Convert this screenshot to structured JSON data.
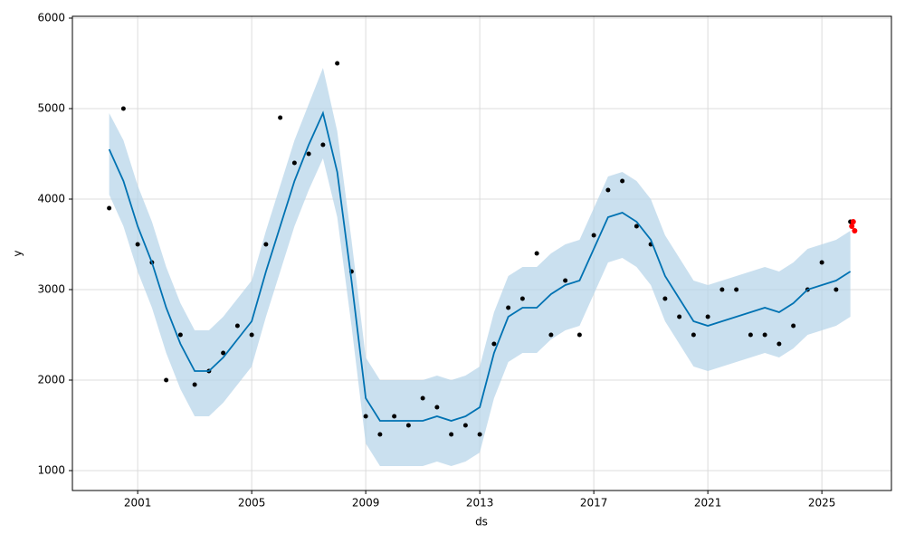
{
  "chart_data": {
    "type": "forecast",
    "x_label": "ds",
    "y_label": "y",
    "xlim": [
      1998.71,
      2027.44
    ],
    "ylim": [
      780,
      6020
    ],
    "xticks": [
      2001,
      2005,
      2009,
      2013,
      2017,
      2021,
      2025
    ],
    "yticks": [
      1000,
      2000,
      3000,
      4000,
      5000,
      6000
    ],
    "grid": true,
    "observed": {
      "color": "#000000",
      "x": [
        2000,
        2000.5,
        2001,
        2001.5,
        2002,
        2002.5,
        2003,
        2003.5,
        2004,
        2004.5,
        2005,
        2005.5,
        2006,
        2006.5,
        2007,
        2007.5,
        2008,
        2008.5,
        2009,
        2009.5,
        2010,
        2010.5,
        2011,
        2011.5,
        2012,
        2012.5,
        2013,
        2013.5,
        2014,
        2014.5,
        2015,
        2015.5,
        2016,
        2016.5,
        2017,
        2017.5,
        2018,
        2018.5,
        2019,
        2019.5,
        2020,
        2020.5,
        2021,
        2021.5,
        2022,
        2022.5,
        2023,
        2023.5,
        2024,
        2024.5,
        2025,
        2025.5,
        2026
      ],
      "values": [
        3900,
        5000,
        3500,
        3300,
        2000,
        2500,
        1950,
        2100,
        2300,
        2600,
        2500,
        3500,
        4900,
        4400,
        4500,
        4600,
        5500,
        3200,
        1600,
        1400,
        1600,
        1500,
        1800,
        1700,
        1400,
        1500,
        1400,
        2400,
        2800,
        2900,
        3400,
        2500,
        3100,
        2500,
        3600,
        4100,
        4200,
        3700,
        3500,
        2900,
        2700,
        2500,
        2700,
        3000,
        3000,
        2500,
        2500,
        2400,
        2600,
        3000,
        3300,
        3000,
        3750
      ]
    },
    "forecast": {
      "color": "#0072b2",
      "band_color": "#b3d3e8",
      "x": [
        2000,
        2000.5,
        2001,
        2001.5,
        2002,
        2002.5,
        2003,
        2003.5,
        2004,
        2004.5,
        2005,
        2005.5,
        2006,
        2006.5,
        2007,
        2007.5,
        2008,
        2008.5,
        2009,
        2009.5,
        2010,
        2010.5,
        2011,
        2011.5,
        2012,
        2012.5,
        2013,
        2013.5,
        2014,
        2014.5,
        2015,
        2015.5,
        2016,
        2016.5,
        2017,
        2017.5,
        2018,
        2018.5,
        2019,
        2019.5,
        2020,
        2020.5,
        2021,
        2021.5,
        2022,
        2022.5,
        2023,
        2023.5,
        2024,
        2024.5,
        2025,
        2025.5,
        2026
      ],
      "values": [
        4550,
        4200,
        3700,
        3300,
        2800,
        2400,
        2100,
        2100,
        2250,
        2450,
        2650,
        3200,
        3700,
        4200,
        4600,
        4950,
        4300,
        3100,
        1800,
        1550,
        1550,
        1550,
        1550,
        1600,
        1550,
        1600,
        1700,
        2300,
        2700,
        2800,
        2800,
        2950,
        3050,
        3100,
        3450,
        3800,
        3850,
        3750,
        3550,
        3150,
        2900,
        2650,
        2600,
        2650,
        2700,
        2750,
        2800,
        2750,
        2850,
        3000,
        3050,
        3100,
        3200
      ],
      "lower": [
        4050,
        3700,
        3200,
        2800,
        2300,
        1900,
        1600,
        1600,
        1750,
        1950,
        2150,
        2700,
        3200,
        3700,
        4100,
        4450,
        3800,
        2600,
        1300,
        1050,
        1050,
        1050,
        1050,
        1100,
        1050,
        1100,
        1200,
        1800,
        2200,
        2300,
        2300,
        2450,
        2550,
        2600,
        2950,
        3300,
        3350,
        3250,
        3050,
        2650,
        2400,
        2150,
        2100,
        2150,
        2200,
        2250,
        2300,
        2250,
        2350,
        2500,
        2550,
        2600,
        2700
      ],
      "upper": [
        4950,
        4650,
        4150,
        3750,
        3250,
        2850,
        2550,
        2550,
        2700,
        2900,
        3100,
        3650,
        4150,
        4650,
        5050,
        5450,
        4750,
        3550,
        2250,
        2000,
        2000,
        2000,
        2000,
        2050,
        2000,
        2050,
        2150,
        2750,
        3150,
        3250,
        3250,
        3400,
        3500,
        3550,
        3900,
        4250,
        4300,
        4200,
        4000,
        3600,
        3350,
        3100,
        3050,
        3100,
        3150,
        3200,
        3250,
        3200,
        3300,
        3450,
        3500,
        3550,
        3650
      ]
    },
    "future": {
      "color": "#ff0000",
      "x": [
        2026.05,
        2026.1,
        2026.15
      ],
      "values": [
        3700,
        3750,
        3650
      ]
    }
  }
}
